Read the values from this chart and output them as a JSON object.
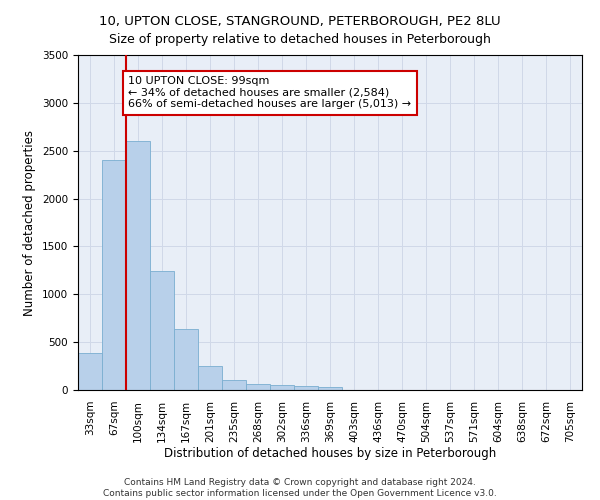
{
  "title1": "10, UPTON CLOSE, STANGROUND, PETERBOROUGH, PE2 8LU",
  "title2": "Size of property relative to detached houses in Peterborough",
  "xlabel": "Distribution of detached houses by size in Peterborough",
  "ylabel": "Number of detached properties",
  "categories": [
    "33sqm",
    "67sqm",
    "100sqm",
    "134sqm",
    "167sqm",
    "201sqm",
    "235sqm",
    "268sqm",
    "302sqm",
    "336sqm",
    "369sqm",
    "403sqm",
    "436sqm",
    "470sqm",
    "504sqm",
    "537sqm",
    "571sqm",
    "604sqm",
    "638sqm",
    "672sqm",
    "705sqm"
  ],
  "values": [
    390,
    2400,
    2600,
    1240,
    640,
    255,
    100,
    65,
    55,
    45,
    30,
    0,
    0,
    0,
    0,
    0,
    0,
    0,
    0,
    0,
    0
  ],
  "bar_color": "#b8d0ea",
  "bar_edge_color": "#7aaed0",
  "vline_color": "#cc0000",
  "annotation_text": "10 UPTON CLOSE: 99sqm\n← 34% of detached houses are smaller (2,584)\n66% of semi-detached houses are larger (5,013) →",
  "annotation_box_color": "#ffffff",
  "annotation_box_edge": "#cc0000",
  "ylim": [
    0,
    3500
  ],
  "yticks": [
    0,
    500,
    1000,
    1500,
    2000,
    2500,
    3000,
    3500
  ],
  "grid_color": "#d0d8e8",
  "bg_color": "#e8eef7",
  "footer": "Contains HM Land Registry data © Crown copyright and database right 2024.\nContains public sector information licensed under the Open Government Licence v3.0.",
  "title1_fontsize": 9.5,
  "title2_fontsize": 9,
  "axis_label_fontsize": 8.5,
  "tick_fontsize": 7.5,
  "annotation_fontsize": 8,
  "footer_fontsize": 6.5
}
